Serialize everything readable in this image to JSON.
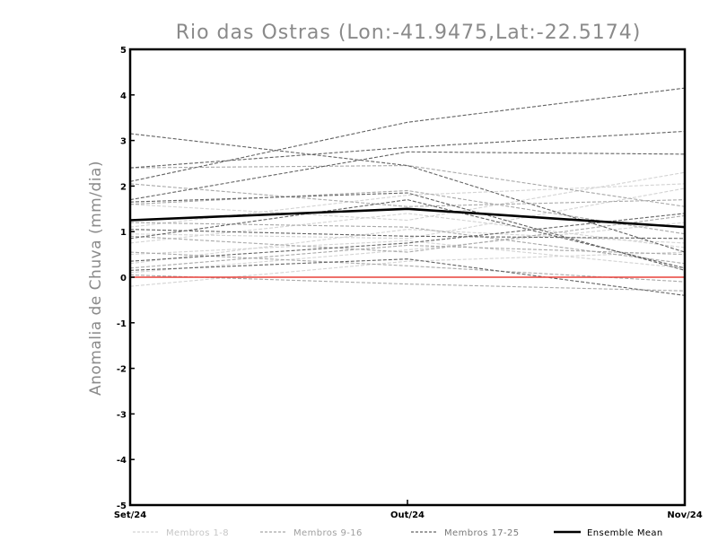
{
  "chart_data": {
    "type": "line",
    "title": "Rio das Ostras (Lon:-41.9475,Lat:-22.5174)",
    "xlabel": "",
    "ylabel": "Anomalia de Chuva (mm/dia)",
    "categories": [
      "Set/24",
      "Out/24",
      "Nov/24"
    ],
    "ylim": [
      -5,
      5
    ],
    "yticks": [
      "5",
      "4",
      "3",
      "2",
      "1",
      "0",
      "-1",
      "-2",
      "-3",
      "-4",
      "-5"
    ],
    "grid": false,
    "legend_position": "bottom",
    "legend": [
      "Membros 1-8",
      "Membros 9-16",
      "Membros 17-25",
      "Ensemble Mean"
    ],
    "zero_line_color": "#e8403a",
    "series": [
      {
        "group": 0,
        "color": "#d3d3d3",
        "values": [
          1.6,
          1.25,
          2.3
        ]
      },
      {
        "group": 0,
        "color": "#d3d3d3",
        "values": [
          1.1,
          1.8,
          2.05
        ]
      },
      {
        "group": 0,
        "color": "#d3d3d3",
        "values": [
          0.95,
          0.85,
          1.95
        ]
      },
      {
        "group": 0,
        "color": "#d3d3d3",
        "values": [
          0.75,
          1.4,
          0.65
        ]
      },
      {
        "group": 0,
        "color": "#d3d3d3",
        "values": [
          0.5,
          0.8,
          0.2
        ]
      },
      {
        "group": 0,
        "color": "#d3d3d3",
        "values": [
          0.3,
          1.05,
          0.75
        ]
      },
      {
        "group": 0,
        "color": "#d3d3d3",
        "values": [
          0.1,
          0.6,
          1.2
        ]
      },
      {
        "group": 0,
        "color": "#d3d3d3",
        "values": [
          -0.2,
          0.35,
          0.55
        ]
      },
      {
        "group": 1,
        "color": "#a8a8a8",
        "values": [
          2.4,
          2.45,
          1.55
        ]
      },
      {
        "group": 1,
        "color": "#a8a8a8",
        "values": [
          2.05,
          1.55,
          1.7
        ]
      },
      {
        "group": 1,
        "color": "#a8a8a8",
        "values": [
          1.6,
          1.9,
          0.95
        ]
      },
      {
        "group": 1,
        "color": "#a8a8a8",
        "values": [
          1.2,
          1.1,
          0.3
        ]
      },
      {
        "group": 1,
        "color": "#a8a8a8",
        "values": [
          0.9,
          0.55,
          1.35
        ]
      },
      {
        "group": 1,
        "color": "#a8a8a8",
        "values": [
          0.55,
          0.25,
          -0.1
        ]
      },
      {
        "group": 1,
        "color": "#a8a8a8",
        "values": [
          0.2,
          0.7,
          0.5
        ]
      },
      {
        "group": 1,
        "color": "#a8a8a8",
        "values": [
          0.05,
          -0.15,
          -0.3
        ]
      },
      {
        "group": 2,
        "color": "#636363",
        "values": [
          3.15,
          2.45,
          0.55
        ]
      },
      {
        "group": 2,
        "color": "#636363",
        "values": [
          2.4,
          2.85,
          3.2
        ]
      },
      {
        "group": 2,
        "color": "#636363",
        "values": [
          2.1,
          3.4,
          4.15
        ]
      },
      {
        "group": 2,
        "color": "#636363",
        "values": [
          1.7,
          2.75,
          2.7
        ]
      },
      {
        "group": 2,
        "color": "#636363",
        "values": [
          1.65,
          1.85,
          0.15
        ]
      },
      {
        "group": 2,
        "color": "#636363",
        "values": [
          1.05,
          0.9,
          0.85
        ]
      },
      {
        "group": 2,
        "color": "#636363",
        "values": [
          0.85,
          1.7,
          0.2
        ]
      },
      {
        "group": 2,
        "color": "#636363",
        "values": [
          0.35,
          0.75,
          1.4
        ]
      },
      {
        "group": 2,
        "color": "#636363",
        "values": [
          0.15,
          0.4,
          -0.4
        ]
      }
    ],
    "mean": {
      "color": "#000000",
      "values": [
        1.25,
        1.5,
        1.1
      ]
    }
  }
}
